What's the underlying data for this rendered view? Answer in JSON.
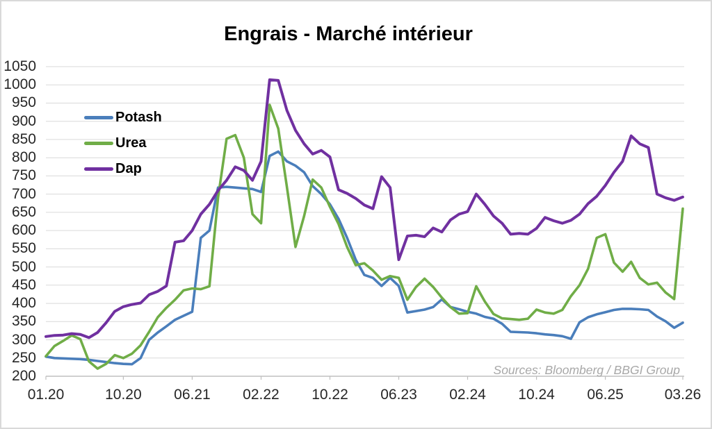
{
  "title": "Engrais - Marché intérieur",
  "source_note": "Sources: Bloomberg / BBGI Group",
  "colors": {
    "grid": "#d9d9d9",
    "axis": "#bfbfbf",
    "tick_label": "#262626",
    "title_text": "#000000",
    "source_text": "#a8a8a8"
  },
  "chart_data": {
    "type": "line",
    "title": "Engrais - Marché intérieur",
    "xlabel": "",
    "ylabel": "",
    "ylim": [
      200,
      1050
    ],
    "y_ticks": [
      200,
      250,
      300,
      350,
      400,
      450,
      500,
      550,
      600,
      650,
      700,
      750,
      800,
      850,
      900,
      950,
      1000,
      1050
    ],
    "grid": "horizontal",
    "legend_position": "inside-top-left",
    "x_tick_labels": [
      "01.20",
      "10.20",
      "06.21",
      "02.22",
      "10.22",
      "06.23",
      "02.24",
      "10.24",
      "06.25",
      "03.26"
    ],
    "x_tick_month_indices": [
      0,
      9,
      17,
      25,
      33,
      41,
      49,
      57,
      65,
      74
    ],
    "months": [
      "2020-01",
      "2020-02",
      "2020-03",
      "2020-04",
      "2020-05",
      "2020-06",
      "2020-07",
      "2020-08",
      "2020-09",
      "2020-10",
      "2020-11",
      "2020-12",
      "2021-01",
      "2021-02",
      "2021-03",
      "2021-04",
      "2021-05",
      "2021-06",
      "2021-07",
      "2021-08",
      "2021-09",
      "2021-10",
      "2021-11",
      "2021-12",
      "2022-01",
      "2022-02",
      "2022-03",
      "2022-04",
      "2022-05",
      "2022-06",
      "2022-07",
      "2022-08",
      "2022-09",
      "2022-10",
      "2022-11",
      "2022-12",
      "2023-01",
      "2023-02",
      "2023-03",
      "2023-04",
      "2023-05",
      "2023-06",
      "2023-07",
      "2023-08",
      "2023-09",
      "2023-10",
      "2023-11",
      "2023-12",
      "2024-01",
      "2024-02",
      "2024-03",
      "2024-04",
      "2024-05",
      "2024-06",
      "2024-07",
      "2024-08",
      "2024-09",
      "2024-10",
      "2024-11",
      "2024-12",
      "2025-01",
      "2025-02",
      "2025-03",
      "2025-04",
      "2025-05",
      "2025-06",
      "2025-07",
      "2025-08",
      "2025-09",
      "2025-10",
      "2025-11",
      "2025-12",
      "2026-01",
      "2026-02",
      "2026-03"
    ],
    "series": [
      {
        "name": "Potash",
        "color": "#4A7EBB",
        "values": [
          254,
          250,
          249,
          248,
          247,
          245,
          242,
          239,
          236,
          234,
          233,
          250,
          300,
          320,
          337,
          355,
          366,
          377,
          580,
          600,
          718,
          720,
          718,
          716,
          714,
          706,
          805,
          817,
          790,
          778,
          760,
          722,
          700,
          672,
          632,
          580,
          520,
          478,
          470,
          448,
          470,
          448,
          375,
          379,
          383,
          390,
          411,
          390,
          384,
          377,
          372,
          363,
          358,
          344,
          322,
          321,
          320,
          318,
          315,
          313,
          310,
          303,
          348,
          362,
          370,
          376,
          382,
          385,
          385,
          384,
          382,
          364,
          351,
          333,
          347
        ]
      },
      {
        "name": "Urea",
        "color": "#70AD47",
        "values": [
          255,
          283,
          297,
          312,
          302,
          241,
          221,
          234,
          258,
          250,
          262,
          285,
          322,
          362,
          388,
          410,
          436,
          441,
          439,
          447,
          690,
          852,
          862,
          800,
          645,
          620,
          945,
          880,
          720,
          555,
          640,
          740,
          718,
          665,
          618,
          555,
          505,
          510,
          490,
          465,
          475,
          470,
          410,
          445,
          468,
          445,
          416,
          390,
          372,
          373,
          447,
          405,
          371,
          359,
          357,
          355,
          358,
          383,
          375,
          372,
          382,
          420,
          450,
          495,
          580,
          590,
          512,
          487,
          514,
          470,
          452,
          457,
          430,
          412,
          660
        ]
      },
      {
        "name": "Dap",
        "color": "#7030A0",
        "values": [
          309,
          312,
          313,
          317,
          315,
          306,
          320,
          347,
          378,
          391,
          397,
          401,
          424,
          433,
          448,
          568,
          572,
          600,
          645,
          672,
          710,
          738,
          775,
          765,
          738,
          790,
          1014,
          1012,
          930,
          875,
          838,
          810,
          820,
          802,
          712,
          702,
          688,
          670,
          660,
          748,
          718,
          520,
          585,
          587,
          583,
          607,
          596,
          629,
          645,
          652,
          700,
          672,
          640,
          620,
          590,
          592,
          590,
          606,
          636,
          627,
          620,
          628,
          645,
          674,
          694,
          724,
          760,
          790,
          860,
          838,
          828,
          700,
          690,
          683,
          692
        ]
      }
    ]
  }
}
